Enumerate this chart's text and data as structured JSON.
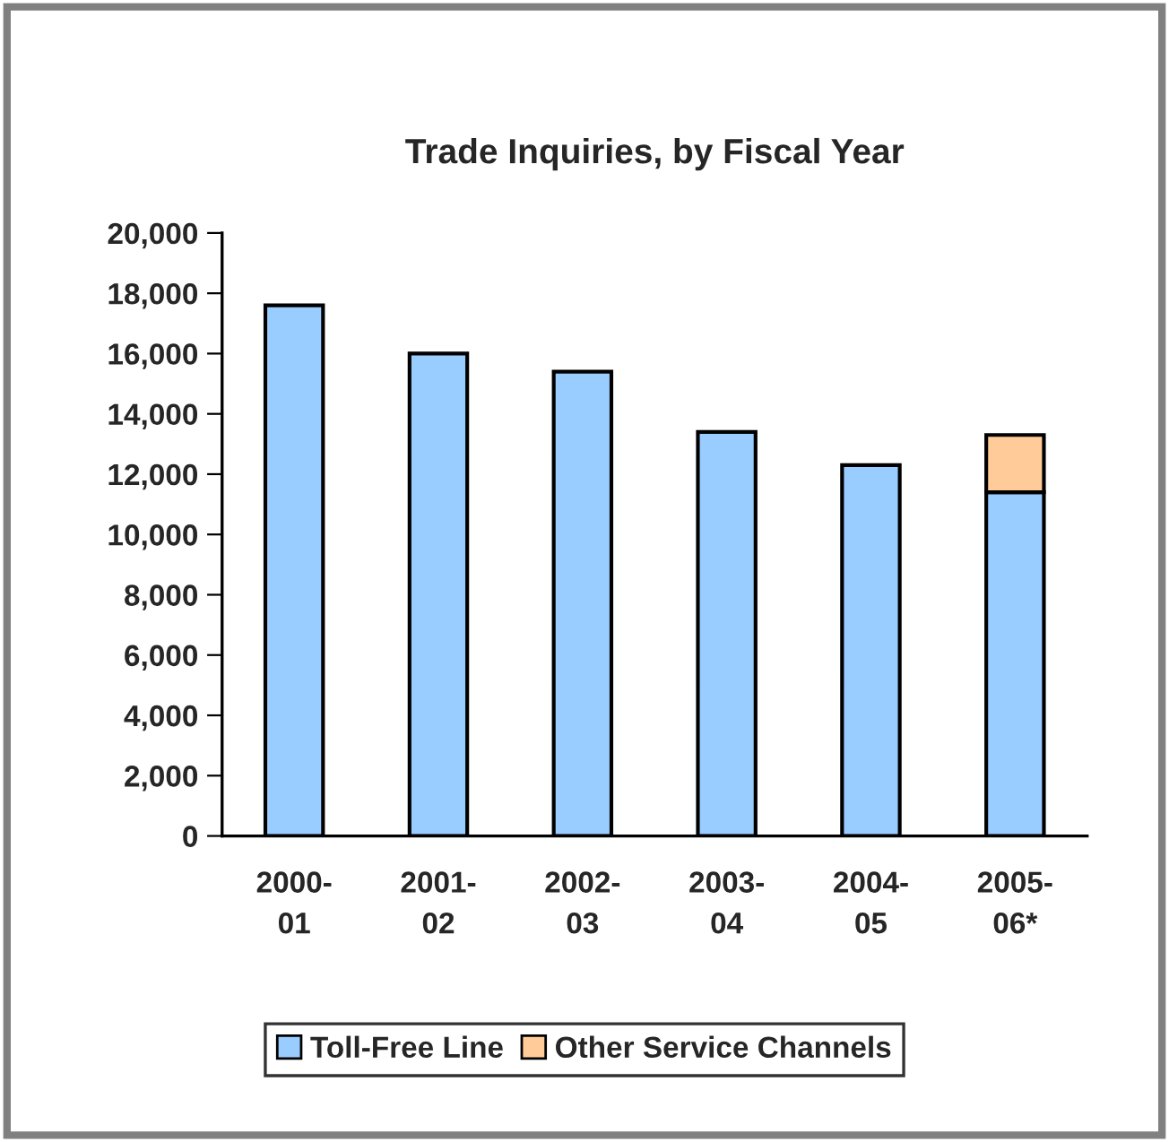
{
  "chart_data": {
    "type": "bar",
    "title": "Trade Inquiries, by Fiscal Year",
    "categories": [
      "2000-\n01",
      "2001-\n02",
      "2002-\n03",
      "2003-\n04",
      "2004-\n05",
      "2005-\n06*"
    ],
    "series": [
      {
        "name": "Toll-Free Line",
        "color": "#99ccff",
        "values": [
          17600,
          16000,
          15400,
          13400,
          12300,
          11400
        ]
      },
      {
        "name": "Other Service Channels",
        "color": "#ffcc99",
        "values": [
          null,
          null,
          null,
          null,
          null,
          1900
        ]
      }
    ],
    "stacked": true,
    "ylim": [
      0,
      20000
    ],
    "yticks": [
      {
        "value": 0,
        "label": "0"
      },
      {
        "value": 2000,
        "label": "2,000"
      },
      {
        "value": 4000,
        "label": "4,000"
      },
      {
        "value": 6000,
        "label": "6,000"
      },
      {
        "value": 8000,
        "label": "8,000"
      },
      {
        "value": 10000,
        "label": "10,000"
      },
      {
        "value": 12000,
        "label": "12,000"
      },
      {
        "value": 14000,
        "label": "14,000"
      },
      {
        "value": 16000,
        "label": "16,000"
      },
      {
        "value": 18000,
        "label": "18,000"
      },
      {
        "value": 20000,
        "label": "20,000"
      }
    ],
    "grid": false,
    "legend": "bottom"
  }
}
